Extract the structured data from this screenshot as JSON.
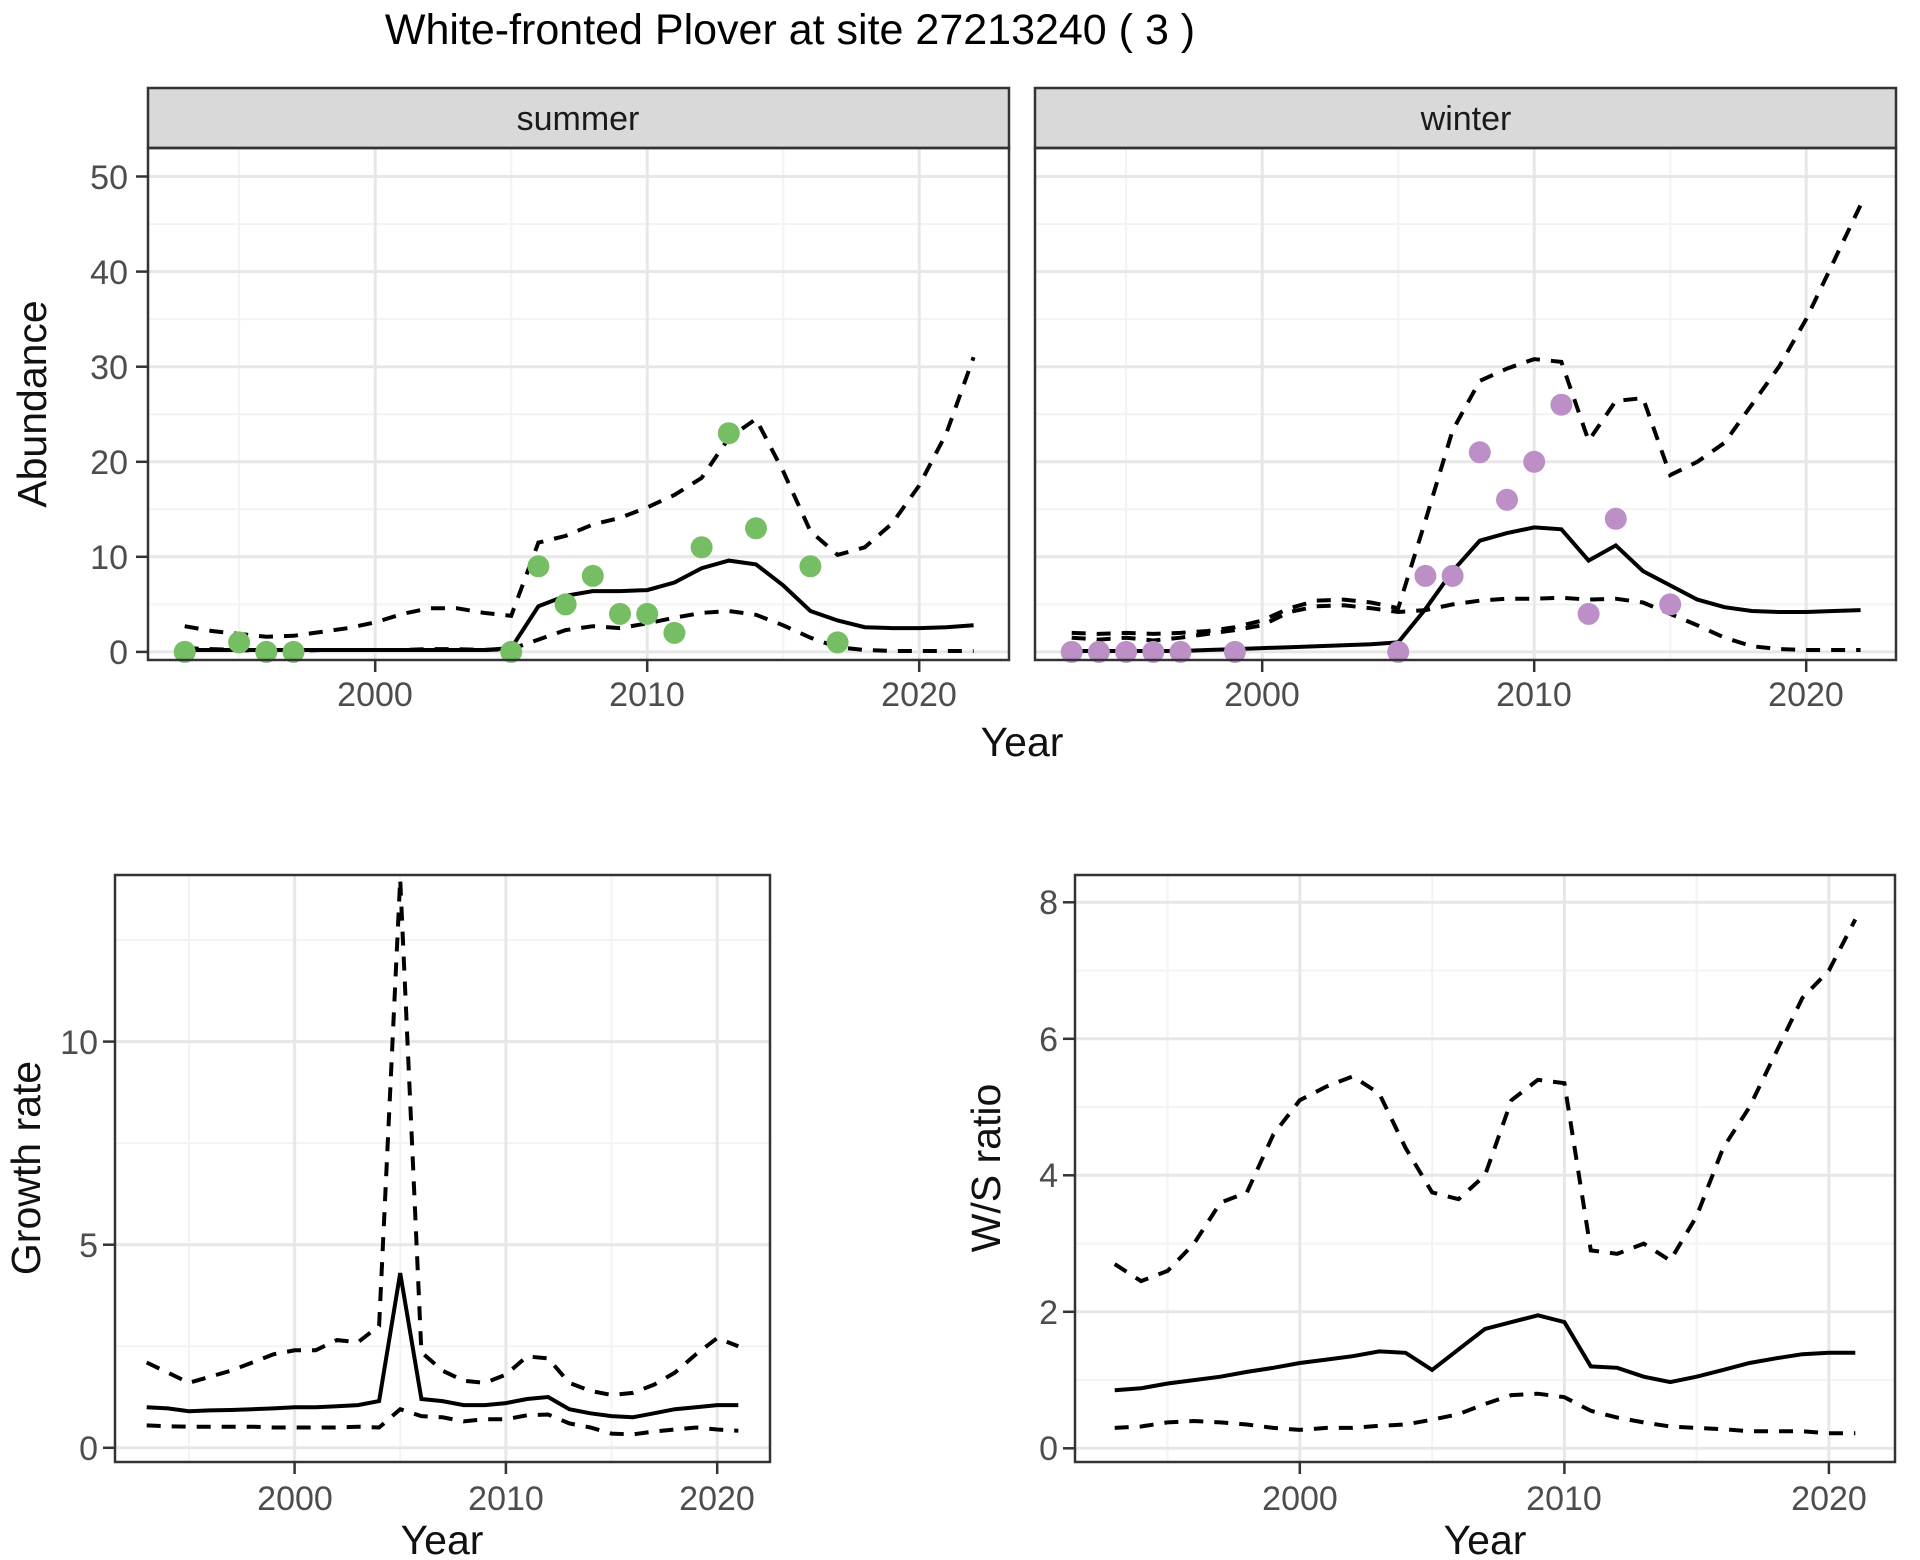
{
  "title": "White-fronted Plover at site 27213240 ( 3 )",
  "colors": {
    "summer_point": "#76BE64",
    "winter_point": "#BC90C7",
    "line": "#000000",
    "panel_bg": "#FFFFFF",
    "strip_bg": "#D9D9D9",
    "panel_border": "#333333",
    "grid_major": "#E7E7E7",
    "grid_minor": "#F3F3F3",
    "axis_text": "#4D4D4D"
  },
  "chart_data": [
    {
      "id": "abundance-summer",
      "type": "line",
      "facet_label": "summer",
      "xlabel": "Year",
      "ylabel": "Abundance",
      "x_ticks": [
        2000,
        2010,
        2020
      ],
      "y_ticks": [
        0,
        10,
        20,
        30,
        40,
        50
      ],
      "xlim": [
        1991.65,
        2023.3
      ],
      "ylim": [
        -0.85,
        53
      ],
      "grid": true,
      "legend": "none",
      "years": [
        1993,
        1994,
        1995,
        1996,
        1997,
        1998,
        1999,
        2000,
        2001,
        2002,
        2003,
        2004,
        2005,
        2006,
        2007,
        2008,
        2009,
        2010,
        2011,
        2012,
        2013,
        2014,
        2015,
        2016,
        2017,
        2018,
        2019,
        2020,
        2021,
        2022
      ],
      "series": [
        {
          "name": "fit",
          "style": "solid",
          "values": [
            0.2,
            0.2,
            0.2,
            0.2,
            0.2,
            0.2,
            0.2,
            0.2,
            0.2,
            0.2,
            0.2,
            0.2,
            0.4,
            4.8,
            5.9,
            6.4,
            6.4,
            6.5,
            7.3,
            8.8,
            9.6,
            9.2,
            7.0,
            4.3,
            3.3,
            2.6,
            2.5,
            2.5,
            2.6,
            2.8
          ]
        },
        {
          "name": "upper-ci",
          "style": "dashed",
          "values": [
            2.7,
            2.2,
            1.9,
            1.6,
            1.7,
            2.1,
            2.5,
            3.1,
            4.0,
            4.6,
            4.6,
            4.1,
            3.8,
            11.5,
            12.2,
            13.4,
            14.1,
            15.2,
            16.5,
            18.3,
            22.5,
            24.5,
            19.0,
            12.7,
            10.2,
            11.0,
            13.5,
            17.5,
            23.0,
            31.0
          ]
        },
        {
          "name": "lower-ci",
          "style": "dashed",
          "values": [
            0.4,
            0.3,
            0.2,
            0.1,
            0.1,
            0.2,
            0.2,
            0.2,
            0.2,
            0.3,
            0.3,
            0.2,
            0.3,
            1.3,
            2.3,
            2.7,
            2.5,
            3.0,
            3.6,
            4.1,
            4.3,
            3.9,
            2.8,
            1.5,
            0.5,
            0.2,
            0.1,
            0.1,
            0.1,
            0.1
          ]
        }
      ],
      "observations": {
        "color": "#76BE64",
        "years": [
          1993,
          1995,
          1996,
          1997,
          2005,
          2006,
          2007,
          2008,
          2009,
          2010,
          2011,
          2012,
          2013,
          2014,
          2016,
          2017
        ],
        "values": [
          0,
          1,
          0,
          0,
          0,
          9,
          5,
          8,
          4,
          4,
          2,
          11,
          23,
          13,
          9,
          1
        ]
      }
    },
    {
      "id": "abundance-winter",
      "type": "line",
      "facet_label": "winter",
      "xlabel": "Year",
      "ylabel": "Abundance",
      "x_ticks": [
        2000,
        2010,
        2020
      ],
      "y_ticks": [
        0,
        10,
        20,
        30,
        40,
        50
      ],
      "xlim": [
        1991.65,
        2023.3
      ],
      "ylim": [
        -0.85,
        53
      ],
      "grid": true,
      "legend": "none",
      "years": [
        1993,
        1994,
        1995,
        1996,
        1997,
        1998,
        1999,
        2000,
        2001,
        2002,
        2003,
        2004,
        2005,
        2006,
        2007,
        2008,
        2009,
        2010,
        2011,
        2012,
        2013,
        2014,
        2015,
        2016,
        2017,
        2018,
        2019,
        2020,
        2021,
        2022
      ],
      "series": [
        {
          "name": "fit",
          "style": "solid",
          "values": [
            0.1,
            0.1,
            0.1,
            0.1,
            0.1,
            0.2,
            0.3,
            0.4,
            0.5,
            0.6,
            0.7,
            0.8,
            1.0,
            4.5,
            8.5,
            11.7,
            12.5,
            13.1,
            12.9,
            9.6,
            11.2,
            8.5,
            7.0,
            5.5,
            4.7,
            4.3,
            4.2,
            4.2,
            4.3,
            4.4
          ]
        },
        {
          "name": "upper-ci",
          "style": "dashed",
          "values": [
            2.0,
            1.9,
            2.0,
            1.9,
            2.0,
            2.2,
            2.6,
            3.3,
            4.6,
            5.4,
            5.5,
            5.2,
            4.6,
            13.8,
            23.3,
            28.5,
            29.8,
            30.8,
            30.5,
            22.2,
            26.4,
            26.7,
            18.6,
            20.0,
            22.0,
            26.0,
            30.0,
            35.0,
            41.0,
            47.0
          ]
        },
        {
          "name": "lower-ci",
          "style": "dashed",
          "values": [
            1.5,
            1.3,
            1.5,
            1.2,
            1.5,
            1.9,
            2.3,
            2.8,
            4.2,
            4.8,
            4.9,
            4.6,
            4.2,
            4.4,
            5.0,
            5.4,
            5.6,
            5.6,
            5.7,
            5.5,
            5.6,
            5.2,
            4.0,
            2.8,
            1.5,
            0.6,
            0.3,
            0.2,
            0.2,
            0.2
          ]
        }
      ],
      "observations": {
        "color": "#BC90C7",
        "years": [
          1993,
          1994,
          1995,
          1996,
          1997,
          1999,
          2005,
          2006,
          2007,
          2008,
          2009,
          2010,
          2011,
          2012,
          2013,
          2015
        ],
        "values": [
          0,
          0,
          0,
          0,
          0,
          0,
          0,
          8,
          8,
          21,
          16,
          20,
          26,
          4,
          14,
          5
        ]
      }
    },
    {
      "id": "growth-rate",
      "type": "line",
      "xlabel": "Year",
      "ylabel": "Growth rate",
      "x_ticks": [
        2000,
        2010,
        2020
      ],
      "y_ticks": [
        0,
        5,
        10
      ],
      "xlim": [
        1991.5,
        2022.5
      ],
      "ylim": [
        -0.35,
        14.1
      ],
      "grid": true,
      "legend": "none",
      "years": [
        1993,
        1994,
        1995,
        1996,
        1997,
        1998,
        1999,
        2000,
        2001,
        2002,
        2003,
        2004,
        2005,
        2006,
        2007,
        2008,
        2009,
        2010,
        2011,
        2012,
        2013,
        2014,
        2015,
        2016,
        2017,
        2018,
        2019,
        2020,
        2021
      ],
      "series": [
        {
          "name": "fit",
          "style": "solid",
          "values": [
            1.0,
            0.97,
            0.9,
            0.92,
            0.93,
            0.95,
            0.97,
            1.0,
            1.0,
            1.02,
            1.05,
            1.15,
            4.3,
            1.2,
            1.15,
            1.05,
            1.05,
            1.1,
            1.2,
            1.25,
            0.95,
            0.85,
            0.78,
            0.75,
            0.85,
            0.95,
            1.0,
            1.05,
            1.05
          ]
        },
        {
          "name": "upper-ci",
          "style": "dashed",
          "values": [
            2.1,
            1.85,
            1.6,
            1.75,
            1.9,
            2.1,
            2.3,
            2.4,
            2.4,
            2.65,
            2.6,
            3.0,
            14.0,
            2.35,
            1.9,
            1.65,
            1.6,
            1.8,
            2.25,
            2.2,
            1.6,
            1.4,
            1.3,
            1.35,
            1.55,
            1.85,
            2.3,
            2.7,
            2.5
          ]
        },
        {
          "name": "lower-ci",
          "style": "dashed",
          "values": [
            0.55,
            0.53,
            0.52,
            0.52,
            0.52,
            0.52,
            0.5,
            0.5,
            0.5,
            0.5,
            0.52,
            0.5,
            0.95,
            0.78,
            0.75,
            0.65,
            0.7,
            0.7,
            0.8,
            0.82,
            0.6,
            0.5,
            0.35,
            0.33,
            0.4,
            0.45,
            0.5,
            0.45,
            0.42
          ]
        }
      ]
    },
    {
      "id": "ws-ratio",
      "type": "line",
      "xlabel": "Year",
      "ylabel": "W/S ratio",
      "x_ticks": [
        2000,
        2010,
        2020
      ],
      "y_ticks": [
        0,
        2,
        4,
        6,
        8
      ],
      "xlim": [
        1991.5,
        2022.5
      ],
      "ylim": [
        -0.2,
        8.4
      ],
      "grid": true,
      "legend": "none",
      "years": [
        1993,
        1994,
        1995,
        1996,
        1997,
        1998,
        1999,
        2000,
        2001,
        2002,
        2003,
        2004,
        2005,
        2006,
        2007,
        2008,
        2009,
        2010,
        2011,
        2012,
        2013,
        2014,
        2015,
        2016,
        2017,
        2018,
        2019,
        2020,
        2021
      ],
      "series": [
        {
          "name": "fit",
          "style": "solid",
          "values": [
            0.85,
            0.88,
            0.95,
            1.0,
            1.05,
            1.12,
            1.18,
            1.25,
            1.3,
            1.35,
            1.42,
            1.4,
            1.15,
            1.45,
            1.75,
            1.85,
            1.95,
            1.85,
            1.2,
            1.18,
            1.05,
            0.97,
            1.05,
            1.15,
            1.25,
            1.32,
            1.38,
            1.4,
            1.4
          ]
        },
        {
          "name": "upper-ci",
          "style": "dashed",
          "values": [
            2.7,
            2.45,
            2.6,
            3.0,
            3.6,
            3.75,
            4.6,
            5.1,
            5.3,
            5.45,
            5.2,
            4.4,
            3.75,
            3.65,
            4.0,
            5.1,
            5.4,
            5.35,
            2.9,
            2.85,
            3.0,
            2.75,
            3.4,
            4.4,
            5.0,
            5.8,
            6.6,
            7.0,
            7.75
          ]
        },
        {
          "name": "lower-ci",
          "style": "dashed",
          "values": [
            0.3,
            0.32,
            0.38,
            0.4,
            0.38,
            0.35,
            0.3,
            0.27,
            0.3,
            0.3,
            0.33,
            0.35,
            0.42,
            0.5,
            0.65,
            0.78,
            0.8,
            0.75,
            0.55,
            0.45,
            0.38,
            0.32,
            0.3,
            0.28,
            0.25,
            0.25,
            0.25,
            0.22,
            0.22
          ]
        }
      ]
    }
  ]
}
